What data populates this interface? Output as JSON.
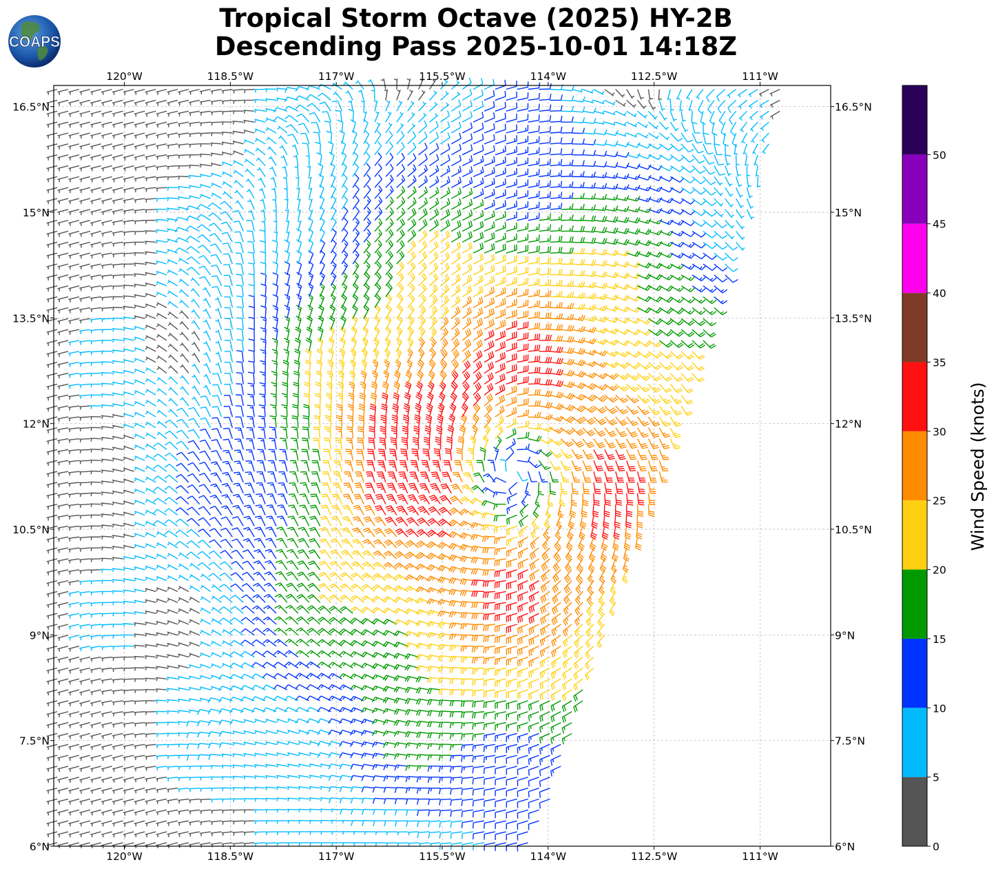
{
  "title": {
    "line1": "Tropical Storm Octave (2025) HY-2B",
    "line2": "Descending Pass 2025-10-01 14:18Z"
  },
  "logo": {
    "text": "COAPS",
    "icon": "globe-icon"
  },
  "map": {
    "lon_range": [
      -121.0,
      -110.0
    ],
    "lat_range": [
      6.0,
      16.8
    ],
    "grid": true,
    "lon_ticks": [
      {
        "lon": -120.0,
        "label": "120°W"
      },
      {
        "lon": -118.5,
        "label": "118.5°W"
      },
      {
        "lon": -117.0,
        "label": "117°W"
      },
      {
        "lon": -115.5,
        "label": "115.5°W"
      },
      {
        "lon": -114.0,
        "label": "114°W"
      },
      {
        "lon": -112.5,
        "label": "112.5°W"
      },
      {
        "lon": -111.0,
        "label": "111°W"
      }
    ],
    "lat_ticks": [
      {
        "lat": 16.5,
        "label": "16.5°N"
      },
      {
        "lat": 15.0,
        "label": "15°N"
      },
      {
        "lat": 13.5,
        "label": "13.5°N"
      },
      {
        "lat": 12.0,
        "label": "12°N"
      },
      {
        "lat": 10.5,
        "label": "10.5°N"
      },
      {
        "lat": 9.0,
        "label": "9°N"
      },
      {
        "lat": 7.5,
        "label": "7.5°N"
      },
      {
        "lat": 6.0,
        "label": "6°N"
      }
    ],
    "storm_center": {
      "lon": -114.5,
      "lat": 11.3
    },
    "swath_east_edge": [
      {
        "lat": 16.7,
        "lon": -110.6
      },
      {
        "lat": 6.0,
        "lon": -114.2
      }
    ]
  },
  "colorbar": {
    "label": "Wind Speed (knots)",
    "bins": [
      {
        "min": 0,
        "max": 5,
        "color": "#555555"
      },
      {
        "min": 5,
        "max": 10,
        "color": "#00bbff"
      },
      {
        "min": 10,
        "max": 15,
        "color": "#0033ff"
      },
      {
        "min": 15,
        "max": 20,
        "color": "#009900"
      },
      {
        "min": 20,
        "max": 25,
        "color": "#ffd011"
      },
      {
        "min": 25,
        "max": 30,
        "color": "#ff8c00"
      },
      {
        "min": 30,
        "max": 35,
        "color": "#ff1111"
      },
      {
        "min": 35,
        "max": 40,
        "color": "#7f3b28"
      },
      {
        "min": 40,
        "max": 45,
        "color": "#ff00ee"
      },
      {
        "min": 45,
        "max": 50,
        "color": "#8800bb"
      },
      {
        "min": 50,
        "max": 55,
        "color": "#2b0059"
      }
    ],
    "ticks": [
      {
        "value": 0,
        "label": "0"
      },
      {
        "value": 5,
        "label": "5"
      },
      {
        "value": 10,
        "label": "10"
      },
      {
        "value": 15,
        "label": "15"
      },
      {
        "value": 20,
        "label": "20"
      },
      {
        "value": 25,
        "label": "25"
      },
      {
        "value": 30,
        "label": "30"
      },
      {
        "value": 35,
        "label": "35"
      },
      {
        "value": 40,
        "label": "40"
      },
      {
        "value": 45,
        "label": "45"
      },
      {
        "value": 50,
        "label": "50"
      }
    ]
  }
}
